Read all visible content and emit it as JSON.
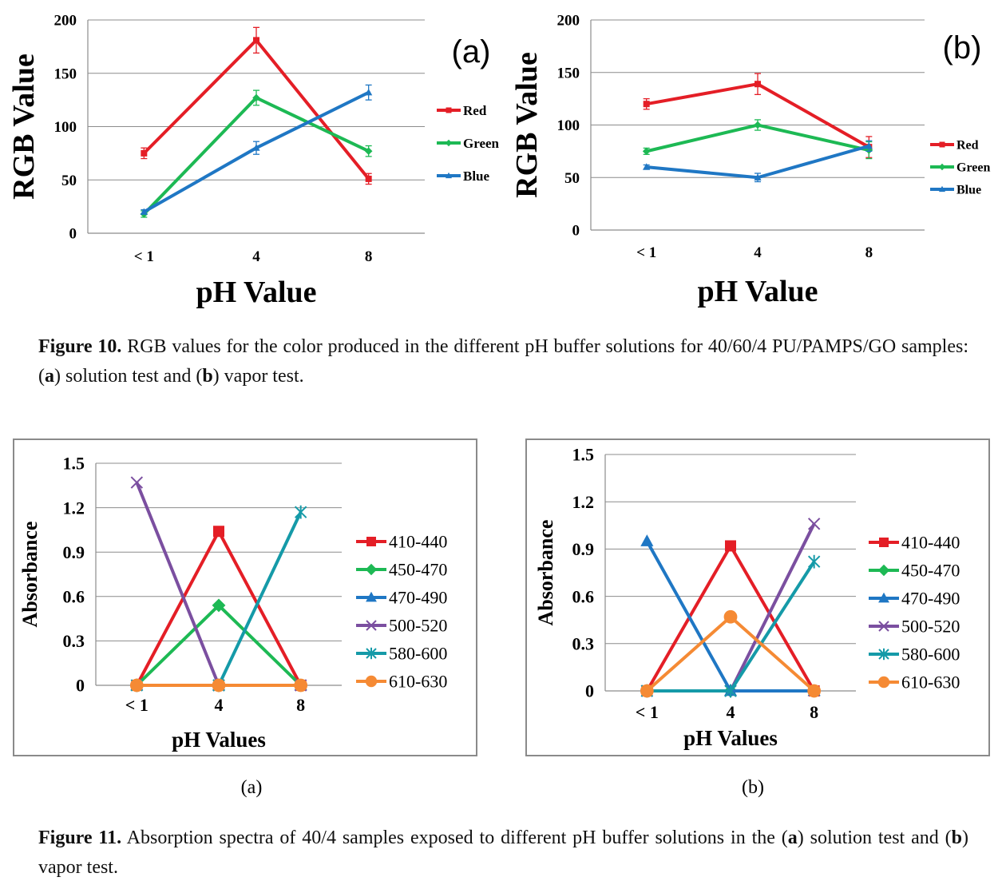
{
  "figure10": {
    "label": "Figure 10.",
    "caption_part1": "RGB values for the color produced in the different pH buffer solutions for 40/60/4 PU/PAMPS/GO samples: (",
    "a": "a",
    "caption_part2": ") solution test and (",
    "b": "b",
    "caption_part3": ") vapor test."
  },
  "figure11": {
    "label": "Figure 11.",
    "caption_part1": "Absorption spectra of 40/4 samples exposed to different pH buffer solutions in the (",
    "a": "a",
    "caption_part2": ") solution test and (",
    "b": "b",
    "caption_part3": ") vapor test.",
    "sub_a": "(a)",
    "sub_b": "(b)"
  },
  "chart_data": [
    {
      "id": "fig10a",
      "type": "line",
      "panel_label": "(a)",
      "categories": [
        "< 1",
        "4",
        "8"
      ],
      "xlabel": "pH Value",
      "ylabel": "RGB  Value",
      "ylim": [
        0,
        200
      ],
      "yticks": [
        0,
        50,
        100,
        150,
        200
      ],
      "grid": true,
      "legend": "right",
      "series": [
        {
          "name": "Red",
          "color": "#e41e26",
          "marker": "square",
          "values": [
            75,
            181,
            51
          ],
          "errors": [
            5,
            12,
            5
          ]
        },
        {
          "name": "Green",
          "color": "#1db954",
          "marker": "diamond",
          "values": [
            18,
            127,
            77
          ],
          "errors": [
            3,
            7,
            5
          ]
        },
        {
          "name": "Blue",
          "color": "#1f77c4",
          "marker": "triangle",
          "values": [
            20,
            80,
            132
          ],
          "errors": [
            2,
            6,
            7
          ]
        }
      ]
    },
    {
      "id": "fig10b",
      "type": "line",
      "panel_label": "(b)",
      "categories": [
        "< 1",
        "4",
        "8"
      ],
      "xlabel": "pH Value",
      "ylabel": "RGB  Value",
      "ylim": [
        0,
        200
      ],
      "yticks": [
        0,
        50,
        100,
        150,
        200
      ],
      "grid": true,
      "legend": "right",
      "series": [
        {
          "name": "Red",
          "color": "#e41e26",
          "marker": "square",
          "values": [
            120,
            139,
            79
          ],
          "errors": [
            5,
            10,
            10
          ]
        },
        {
          "name": "Green",
          "color": "#1db954",
          "marker": "diamond",
          "values": [
            75,
            100,
            76
          ],
          "errors": [
            3,
            5,
            8
          ]
        },
        {
          "name": "Blue",
          "color": "#1f77c4",
          "marker": "triangle",
          "values": [
            60,
            50,
            80
          ],
          "errors": [
            2,
            4,
            5
          ]
        }
      ]
    },
    {
      "id": "fig11a",
      "type": "line",
      "categories": [
        "< 1",
        "4",
        "8"
      ],
      "xlabel": "pH Values",
      "ylabel": "Absorbance",
      "ylim": [
        0,
        1.5
      ],
      "yticks": [
        "0",
        "0.3",
        "0.6",
        "0.9",
        "1.2",
        "1.5"
      ],
      "grid": true,
      "legend": "right",
      "series": [
        {
          "name": "410-440",
          "color": "#e41e26",
          "marker": "square",
          "values": [
            0,
            1.04,
            0
          ]
        },
        {
          "name": "450-470",
          "color": "#1db954",
          "marker": "diamond",
          "values": [
            0,
            0.54,
            0
          ]
        },
        {
          "name": "470-490",
          "color": "#1f77c4",
          "marker": "triangle",
          "values": [
            0,
            0,
            0
          ]
        },
        {
          "name": "500-520",
          "color": "#7b4fa0",
          "marker": "x",
          "values": [
            1.37,
            0,
            0
          ]
        },
        {
          "name": "580-600",
          "color": "#159aa8",
          "marker": "star",
          "values": [
            0,
            0,
            1.17
          ]
        },
        {
          "name": "610-630",
          "color": "#f58a34",
          "marker": "circle",
          "values": [
            0,
            0,
            0
          ]
        }
      ]
    },
    {
      "id": "fig11b",
      "type": "line",
      "categories": [
        "< 1",
        "4",
        "8"
      ],
      "xlabel": "pH Values",
      "ylabel": "Absorbance",
      "ylim": [
        0,
        1.5
      ],
      "yticks": [
        "0",
        "0.3",
        "0.6",
        "0.9",
        "1.2",
        "1.5"
      ],
      "grid": true,
      "legend": "right",
      "series": [
        {
          "name": "410-440",
          "color": "#e41e26",
          "marker": "square",
          "values": [
            0,
            0.92,
            0
          ]
        },
        {
          "name": "450-470",
          "color": "#1db954",
          "marker": "diamond",
          "values": [
            0,
            0,
            0
          ]
        },
        {
          "name": "470-490",
          "color": "#1f77c4",
          "marker": "triangle",
          "values": [
            0.95,
            0,
            0
          ]
        },
        {
          "name": "500-520",
          "color": "#7b4fa0",
          "marker": "x",
          "values": [
            0,
            0,
            1.06
          ]
        },
        {
          "name": "580-600",
          "color": "#159aa8",
          "marker": "star",
          "values": [
            0,
            0,
            0.82
          ]
        },
        {
          "name": "610-630",
          "color": "#f58a34",
          "marker": "circle",
          "values": [
            0,
            0.47,
            0
          ]
        }
      ]
    }
  ]
}
